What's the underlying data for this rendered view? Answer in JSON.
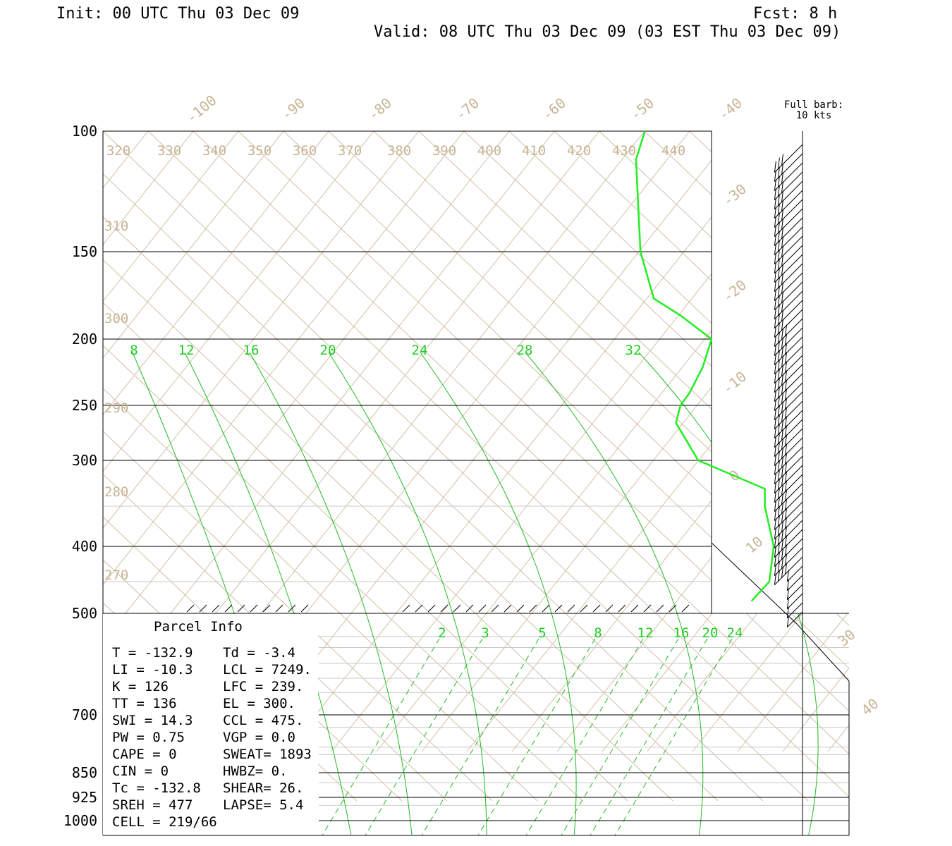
{
  "header": {
    "init": "Init: 00 UTC Thu 03 Dec 09",
    "fcst": "Fcst:    8 h",
    "valid": "Valid: 08 UTC Thu 03 Dec 09 (03 EST Thu 03 Dec 09)"
  },
  "barb_legend": {
    "line1": "Full barb:",
    "line2": "10 kts"
  },
  "chart_data": {
    "type": "line",
    "title": "",
    "pressure_levels": [
      {
        "label": "100",
        "p": 100
      },
      {
        "label": "150",
        "p": 150
      },
      {
        "label": "200",
        "p": 200
      },
      {
        "label": "250",
        "p": 250
      },
      {
        "label": "300",
        "p": 300
      },
      {
        "label": "400",
        "p": 400
      },
      {
        "label": "500",
        "p": 500
      },
      {
        "label": "700",
        "p": 700
      },
      {
        "label": "850",
        "p": 850
      },
      {
        "label": "925",
        "p": 925
      },
      {
        "label": "1000",
        "p": 1000
      }
    ],
    "temperature_labels": [
      "-100",
      "-90",
      "-80",
      "-70",
      "-60",
      "-50",
      "-40",
      "-30",
      "-20",
      "-10",
      "0",
      "10",
      "30",
      "40"
    ],
    "theta_top_labels": [
      "320",
      "330",
      "340",
      "350",
      "360",
      "370",
      "380",
      "390",
      "400",
      "410",
      "420",
      "430",
      "440"
    ],
    "theta_side_labels": [
      "310",
      "300",
      "290",
      "280",
      "270"
    ],
    "moist_adiabat_labels": [
      "8",
      "12",
      "16",
      "20",
      "24",
      "28",
      "32"
    ],
    "mixing_ratio_labels": [
      "2",
      "3",
      "5",
      "8",
      "12",
      "16",
      "20",
      "24"
    ],
    "series": [
      {
        "color": "#22ee22",
        "points": [
          {
            "p": 100,
            "t": -41
          },
          {
            "p": 110,
            "t": -43
          },
          {
            "p": 150,
            "t": -42
          },
          {
            "p": 175,
            "t": -39
          },
          {
            "p": 185,
            "t": -33
          },
          {
            "p": 200,
            "t": -26
          },
          {
            "p": 220,
            "t": -28
          },
          {
            "p": 240,
            "t": -31
          },
          {
            "p": 250,
            "t": -33
          },
          {
            "p": 265,
            "t": -34
          },
          {
            "p": 300,
            "t": -29
          },
          {
            "p": 330,
            "t": -14
          },
          {
            "p": 350,
            "t": -14
          },
          {
            "p": 400,
            "t": -12
          },
          {
            "p": 450,
            "t": -13
          },
          {
            "p": 480,
            "t": -17
          }
        ]
      }
    ]
  },
  "parcel_info": {
    "title": "Parcel Info",
    "rows": [
      {
        "l": "T  =  -132.9",
        "r": "Td =  -3.4"
      },
      {
        "l": "LI =   -10.3",
        "r": "LCL = 7249."
      },
      {
        "l": "K  =     126",
        "r": "LFC =  239."
      },
      {
        "l": "TT =     136",
        "r": "EL  =  300."
      },
      {
        "l": "SWI =   14.3",
        "r": "CCL =  475."
      },
      {
        "l": "PW =    0.75",
        "r": "VGP =   0.0"
      },
      {
        "l": "CAPE =     0",
        "r": "SWEAT= 1893"
      },
      {
        "l": "CIN =      0",
        "r": "HWBZ=    0."
      },
      {
        "l": "Tc =  -132.8",
        "r": "SHEAR=  26."
      },
      {
        "l": "SREH =   477",
        "r": "LAPSE=  5.4"
      },
      {
        "l": "CELL = 219/66",
        "r": ""
      }
    ]
  }
}
